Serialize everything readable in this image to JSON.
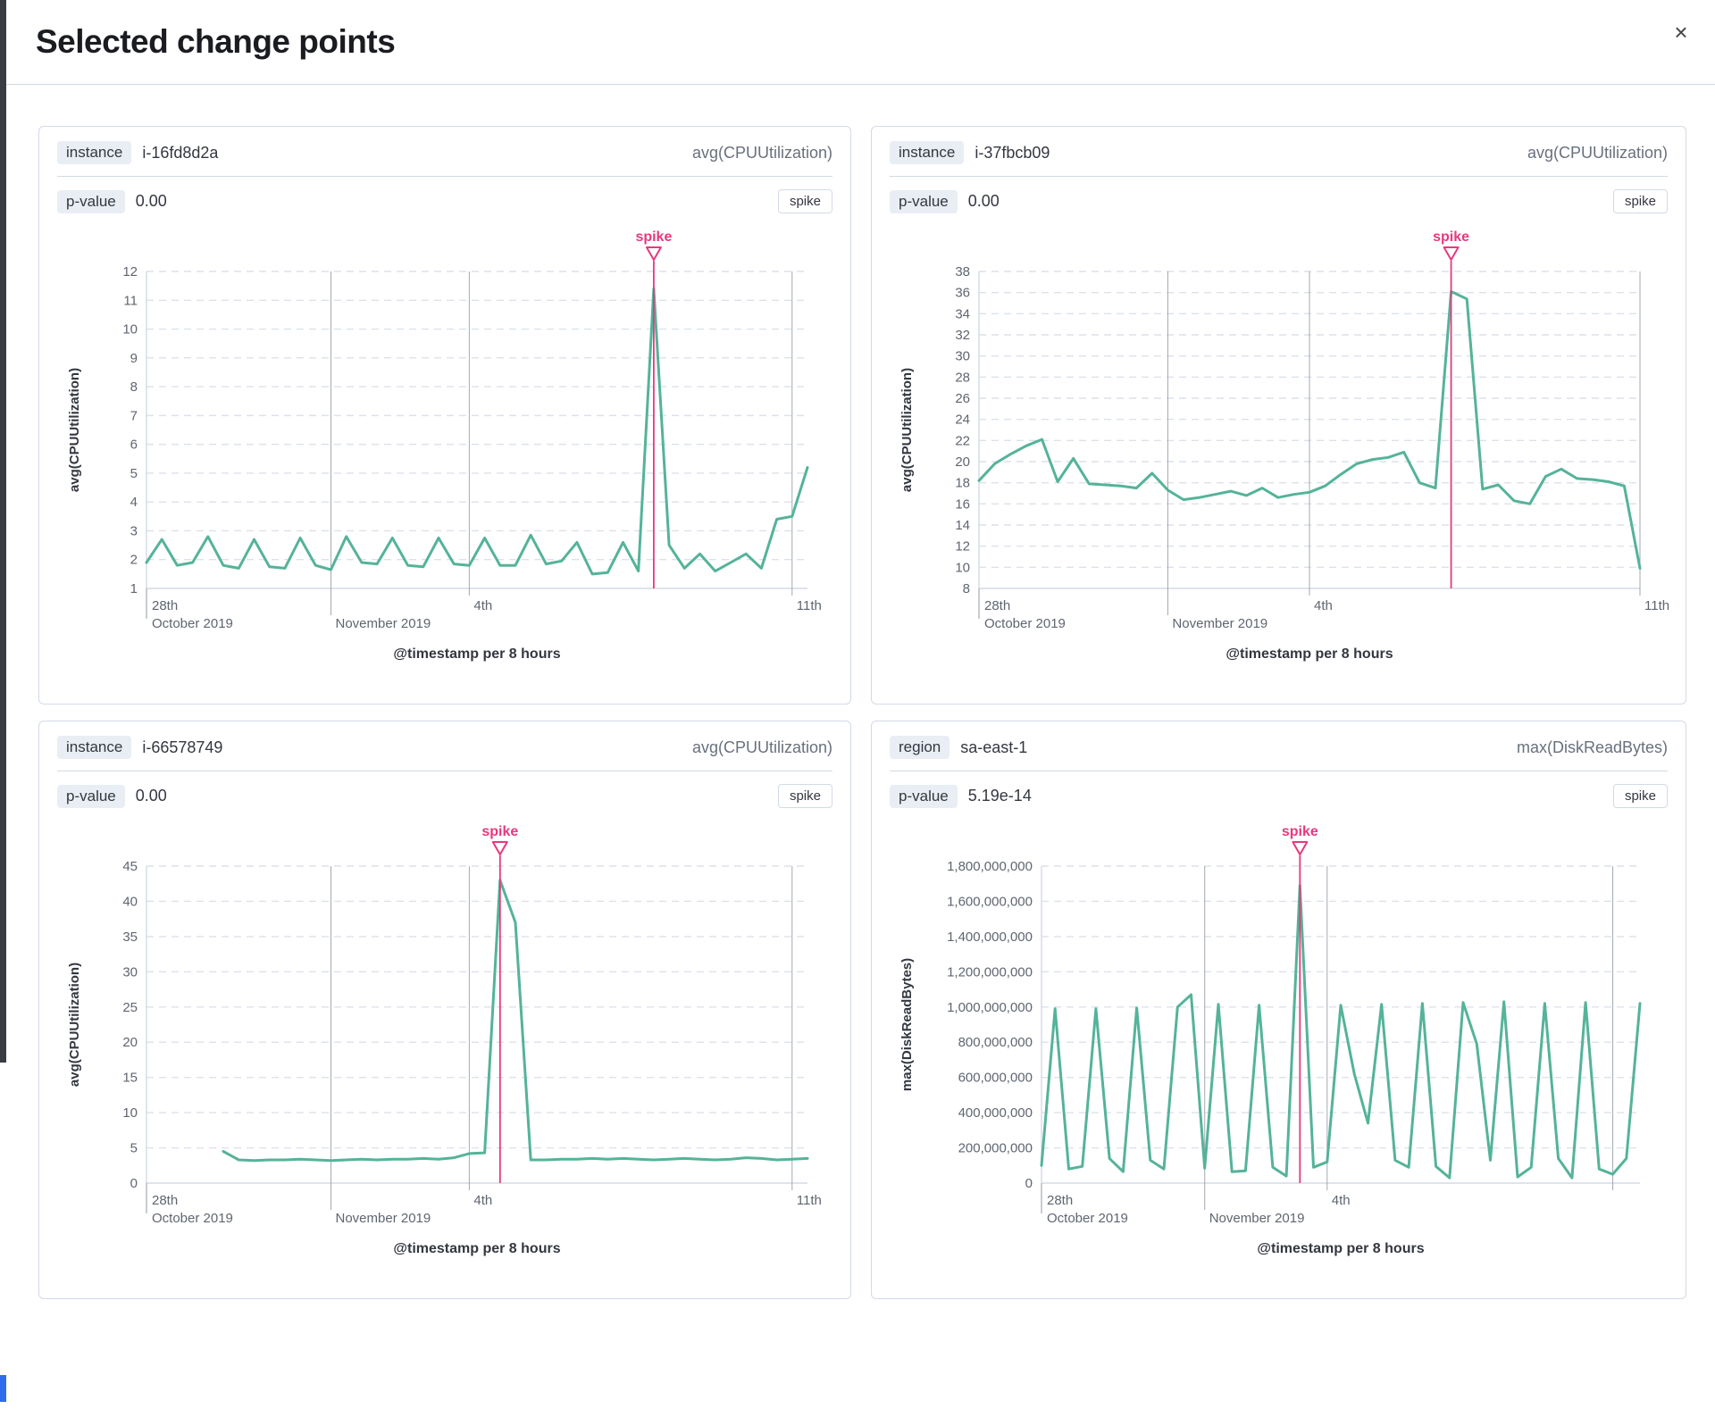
{
  "modal": {
    "title": "Selected change points",
    "close_icon": "×"
  },
  "labels": {
    "p_value": "p-value"
  },
  "colors": {
    "accent_pink": "#e6397f",
    "series_green": "#54b399",
    "grid_dash": "#dde1ea",
    "grid_vertical": "#949aa5",
    "axis_line": "#d3dae6",
    "tick_text": "#5f6570",
    "text_dark": "#343741",
    "text_muted": "#69707d"
  },
  "chart_data": [
    {
      "type": "line",
      "key_label": "instance",
      "key_value": "i-16fd8d2a",
      "metric": "avg(CPUUtilization)",
      "p_value": "0.00",
      "change_type": "spike",
      "ylabel": "avg(CPUUtilization)",
      "xlabel": "@timestamp per 8 hours",
      "ylim": [
        1,
        12
      ],
      "ytick_step": 1,
      "x_start_label": [
        "28th",
        "October 2019"
      ],
      "x_gridlines": [
        {
          "index": 12,
          "label": "November 2019",
          "row": 2
        },
        {
          "index": 21,
          "label": "4th",
          "row": 1
        },
        {
          "index": 42,
          "label": "11th",
          "row": 1
        }
      ],
      "spike_index": 33,
      "values": [
        1.9,
        2.7,
        1.8,
        1.9,
        2.8,
        1.8,
        1.7,
        2.7,
        1.75,
        1.7,
        2.75,
        1.8,
        1.65,
        2.8,
        1.9,
        1.85,
        2.75,
        1.8,
        1.75,
        2.75,
        1.85,
        1.8,
        2.75,
        1.8,
        1.8,
        2.85,
        1.85,
        1.95,
        2.6,
        1.5,
        1.55,
        2.6,
        1.6,
        11.4,
        2.5,
        1.7,
        2.2,
        1.6,
        1.9,
        2.2,
        1.7,
        3.4,
        3.5,
        5.2
      ]
    },
    {
      "type": "line",
      "key_label": "instance",
      "key_value": "i-37fbcb09",
      "metric": "avg(CPUUtilization)",
      "p_value": "0.00",
      "change_type": "spike",
      "ylabel": "avg(CPUUtilization)",
      "xlabel": "@timestamp per 8 hours",
      "ylim": [
        8,
        38
      ],
      "ytick_step": 2,
      "x_start_label": [
        "28th",
        "October 2019"
      ],
      "x_gridlines": [
        {
          "index": 12,
          "label": "November 2019",
          "row": 2
        },
        {
          "index": 21,
          "label": "4th",
          "row": 1
        },
        {
          "index": 42,
          "label": "11th",
          "row": 1
        }
      ],
      "spike_index": 30,
      "values": [
        18.2,
        19.8,
        20.7,
        21.5,
        22.1,
        18.1,
        20.3,
        17.9,
        17.8,
        17.7,
        17.5,
        18.9,
        17.3,
        16.4,
        16.6,
        16.9,
        17.2,
        16.8,
        17.5,
        16.6,
        16.9,
        17.1,
        17.7,
        18.8,
        19.8,
        20.2,
        20.4,
        20.9,
        18.0,
        17.5,
        36.1,
        35.4,
        17.4,
        17.8,
        16.3,
        16.0,
        18.6,
        19.3,
        18.4,
        18.3,
        18.1,
        17.7,
        9.9
      ]
    },
    {
      "type": "line",
      "key_label": "instance",
      "key_value": "i-66578749",
      "metric": "avg(CPUUtilization)",
      "p_value": "0.00",
      "change_type": "spike",
      "ylabel": "avg(CPUUtilization)",
      "xlabel": "@timestamp per 8 hours",
      "ylim": [
        0,
        45
      ],
      "ytick_step": 5,
      "x_start_label": [
        "28th",
        "October 2019"
      ],
      "x_gridlines": [
        {
          "index": 12,
          "label": "November 2019",
          "row": 2
        },
        {
          "index": 21,
          "label": "4th",
          "row": 1
        },
        {
          "index": 42,
          "label": "11th",
          "row": 1
        }
      ],
      "spike_index": 23,
      "values": [
        null,
        null,
        null,
        null,
        null,
        4.5,
        3.3,
        3.2,
        3.3,
        3.3,
        3.4,
        3.3,
        3.2,
        3.3,
        3.4,
        3.3,
        3.4,
        3.4,
        3.5,
        3.4,
        3.6,
        4.2,
        4.3,
        43.0,
        37.0,
        3.3,
        3.3,
        3.4,
        3.4,
        3.5,
        3.4,
        3.5,
        3.4,
        3.3,
        3.4,
        3.5,
        3.4,
        3.3,
        3.4,
        3.6,
        3.5,
        3.3,
        3.4,
        3.5
      ]
    },
    {
      "type": "line",
      "key_label": "region",
      "key_value": "sa-east-1",
      "metric": "max(DiskReadBytes)",
      "p_value": "5.19e-14",
      "change_type": "spike",
      "ylabel": "max(DiskReadBytes)",
      "xlabel": "@timestamp per 8 hours",
      "ylim": [
        0,
        1800000000
      ],
      "ytick_step": 200000000,
      "x_start_label": [
        "28th",
        "October 2019"
      ],
      "x_gridlines": [
        {
          "index": 12,
          "label": "November 2019",
          "row": 2
        },
        {
          "index": 21,
          "label": "4th",
          "row": 1
        },
        {
          "index": 42,
          "label": "",
          "row": 1
        }
      ],
      "spike_index": 19,
      "values": [
        100000000,
        990000000,
        80000000,
        95000000,
        990000000,
        140000000,
        65000000,
        995000000,
        130000000,
        80000000,
        1000000000,
        1070000000,
        85000000,
        1015000000,
        65000000,
        70000000,
        1010000000,
        90000000,
        40000000,
        1690000000,
        90000000,
        120000000,
        1010000000,
        620000000,
        340000000,
        1015000000,
        130000000,
        90000000,
        1020000000,
        95000000,
        30000000,
        1025000000,
        790000000,
        130000000,
        1030000000,
        35000000,
        90000000,
        1020000000,
        140000000,
        30000000,
        1025000000,
        80000000,
        50000000,
        140000000,
        1020000000
      ]
    }
  ]
}
